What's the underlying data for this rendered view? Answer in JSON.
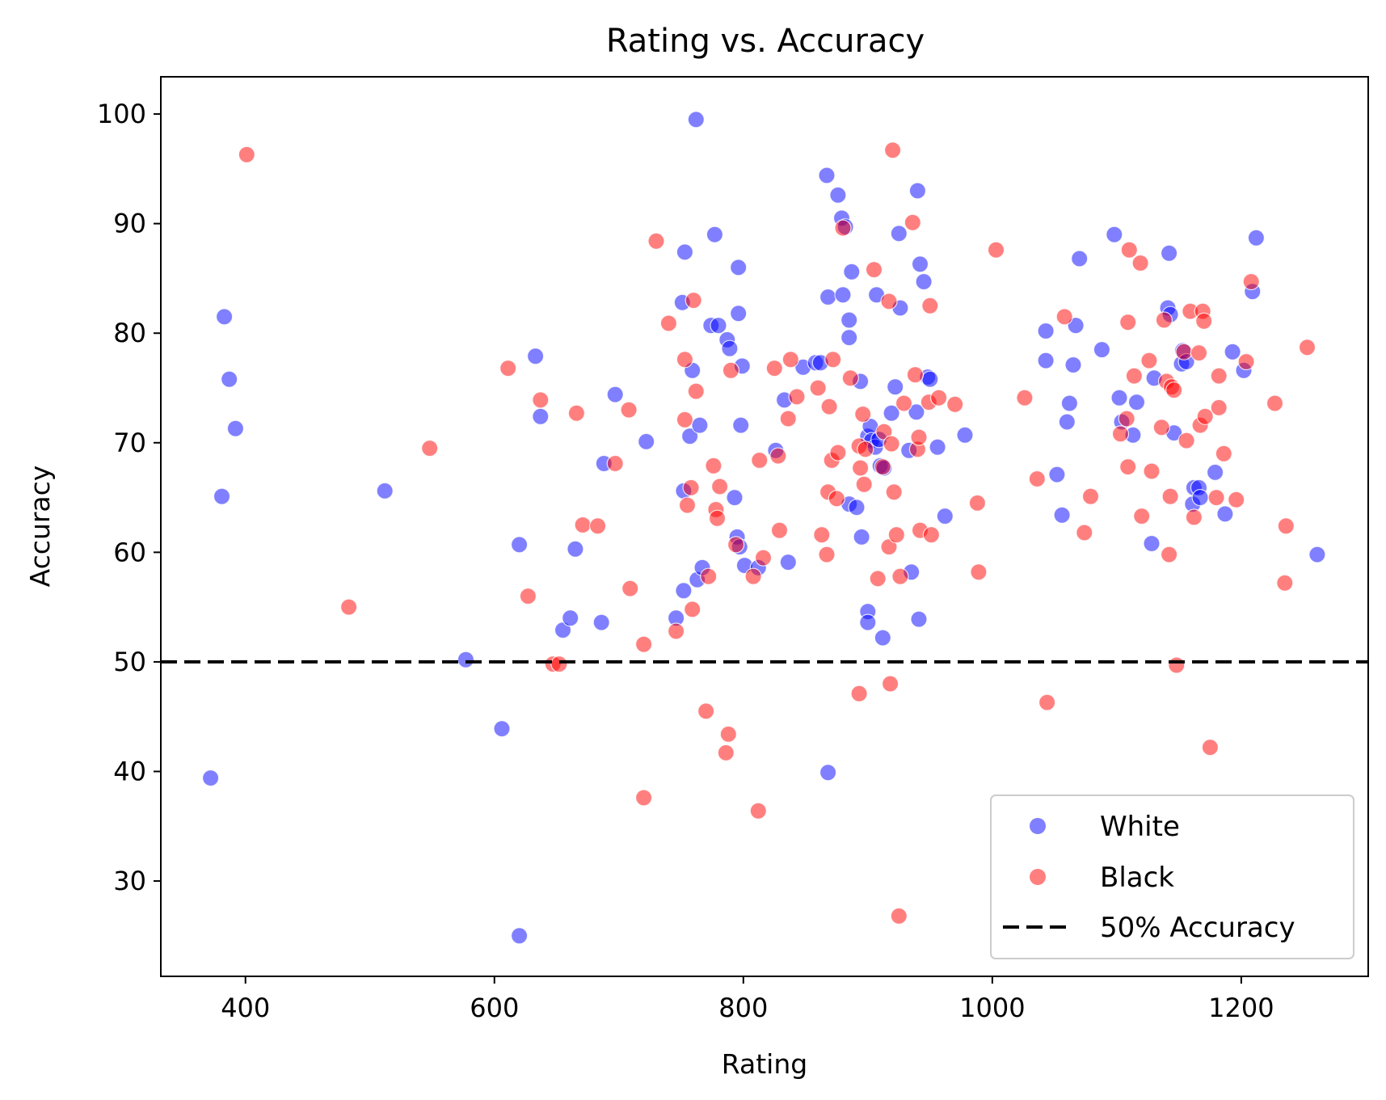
{
  "chart_data": {
    "type": "scatter",
    "title": "Rating vs. Accuracy",
    "xlabel": "Rating",
    "ylabel": "Accuracy",
    "xlim": [
      332,
      1302
    ],
    "ylim": [
      21.3,
      103.4
    ],
    "xticks": [
      400,
      600,
      800,
      1000,
      1200
    ],
    "yticks": [
      30,
      40,
      50,
      60,
      70,
      80,
      90,
      100
    ],
    "grid": false,
    "legend_position": "lower-right",
    "reference_line": {
      "y": 50,
      "style": "dashed",
      "color": "#000000",
      "label": "50% Accuracy"
    },
    "series": [
      {
        "name": "White",
        "color": "#0000ff",
        "opacity": 0.5,
        "points": [
          [
            372,
            39.4
          ],
          [
            381,
            65.1
          ],
          [
            383,
            81.5
          ],
          [
            387,
            75.8
          ],
          [
            392,
            71.3
          ],
          [
            512,
            65.6
          ],
          [
            577,
            50.2
          ],
          [
            606,
            43.9
          ],
          [
            620,
            25.0
          ],
          [
            620,
            60.7
          ],
          [
            633,
            77.9
          ],
          [
            637,
            72.4
          ],
          [
            655,
            52.9
          ],
          [
            661,
            54.0
          ],
          [
            665,
            60.3
          ],
          [
            686,
            53.6
          ],
          [
            688,
            68.1
          ],
          [
            697,
            74.4
          ],
          [
            722,
            70.1
          ],
          [
            746,
            54.0
          ],
          [
            751,
            82.8
          ],
          [
            752,
            65.6
          ],
          [
            752,
            56.5
          ],
          [
            753,
            87.4
          ],
          [
            757,
            70.6
          ],
          [
            759,
            76.6
          ],
          [
            762,
            99.5
          ],
          [
            763,
            57.5
          ],
          [
            765,
            71.6
          ],
          [
            767,
            58.6
          ],
          [
            774,
            80.7
          ],
          [
            777,
            89.0
          ],
          [
            780,
            80.7
          ],
          [
            787,
            79.4
          ],
          [
            789,
            78.6
          ],
          [
            793,
            65.0
          ],
          [
            795,
            61.4
          ],
          [
            796,
            86.0
          ],
          [
            796,
            81.8
          ],
          [
            797,
            60.5
          ],
          [
            798,
            71.6
          ],
          [
            799,
            77.0
          ],
          [
            801,
            58.8
          ],
          [
            812,
            58.6
          ],
          [
            826,
            69.3
          ],
          [
            833,
            73.9
          ],
          [
            836,
            59.1
          ],
          [
            848,
            76.9
          ],
          [
            858,
            77.3
          ],
          [
            862,
            77.3
          ],
          [
            867,
            94.4
          ],
          [
            868,
            83.3
          ],
          [
            868,
            39.9
          ],
          [
            876,
            92.6
          ],
          [
            879,
            90.5
          ],
          [
            880,
            83.5
          ],
          [
            882,
            89.7
          ],
          [
            885,
            81.2
          ],
          [
            885,
            79.6
          ],
          [
            885,
            64.4
          ],
          [
            887,
            85.6
          ],
          [
            891,
            64.1
          ],
          [
            894,
            75.6
          ],
          [
            895,
            61.4
          ],
          [
            900,
            70.6
          ],
          [
            900,
            54.6
          ],
          [
            900,
            53.6
          ],
          [
            902,
            71.5
          ],
          [
            903,
            70.2
          ],
          [
            906,
            69.6
          ],
          [
            907,
            83.5
          ],
          [
            909,
            70.3
          ],
          [
            910,
            67.9
          ],
          [
            912,
            52.2
          ],
          [
            913,
            67.7
          ],
          [
            919,
            72.7
          ],
          [
            922,
            75.1
          ],
          [
            925,
            89.1
          ],
          [
            926,
            82.3
          ],
          [
            933,
            69.3
          ],
          [
            935,
            58.2
          ],
          [
            939,
            72.8
          ],
          [
            940,
            93.0
          ],
          [
            941,
            53.9
          ],
          [
            942,
            86.3
          ],
          [
            945,
            84.7
          ],
          [
            948,
            76.0
          ],
          [
            950,
            75.8
          ],
          [
            956,
            69.6
          ],
          [
            962,
            63.3
          ],
          [
            978,
            70.7
          ],
          [
            1043,
            80.2
          ],
          [
            1043,
            77.5
          ],
          [
            1052,
            67.1
          ],
          [
            1056,
            63.4
          ],
          [
            1060,
            71.9
          ],
          [
            1062,
            73.6
          ],
          [
            1065,
            77.1
          ],
          [
            1067,
            80.7
          ],
          [
            1070,
            86.8
          ],
          [
            1088,
            78.5
          ],
          [
            1098,
            89.0
          ],
          [
            1102,
            74.1
          ],
          [
            1104,
            71.9
          ],
          [
            1113,
            70.7
          ],
          [
            1116,
            73.7
          ],
          [
            1128,
            60.8
          ],
          [
            1130,
            75.9
          ],
          [
            1141,
            82.3
          ],
          [
            1142,
            87.3
          ],
          [
            1143,
            81.7
          ],
          [
            1146,
            70.9
          ],
          [
            1152,
            77.2
          ],
          [
            1153,
            78.4
          ],
          [
            1156,
            77.4
          ],
          [
            1161,
            64.4
          ],
          [
            1162,
            65.9
          ],
          [
            1166,
            65.9
          ],
          [
            1167,
            65.0
          ],
          [
            1179,
            67.3
          ],
          [
            1187,
            63.5
          ],
          [
            1193,
            78.3
          ],
          [
            1202,
            76.6
          ],
          [
            1209,
            83.8
          ],
          [
            1212,
            88.7
          ],
          [
            1261,
            59.8
          ]
        ]
      },
      {
        "name": "Black",
        "color": "#ff0000",
        "opacity": 0.5,
        "points": [
          [
            401,
            96.3
          ],
          [
            483,
            55.0
          ],
          [
            548,
            69.5
          ],
          [
            611,
            76.8
          ],
          [
            627,
            56.0
          ],
          [
            637,
            73.9
          ],
          [
            647,
            49.8
          ],
          [
            652,
            49.8
          ],
          [
            666,
            72.7
          ],
          [
            671,
            62.5
          ],
          [
            683,
            62.4
          ],
          [
            697,
            68.1
          ],
          [
            708,
            73.0
          ],
          [
            709,
            56.7
          ],
          [
            720,
            37.6
          ],
          [
            720,
            51.6
          ],
          [
            730,
            88.4
          ],
          [
            740,
            80.9
          ],
          [
            746,
            52.8
          ],
          [
            753,
            72.1
          ],
          [
            753,
            77.6
          ],
          [
            755,
            64.3
          ],
          [
            758,
            65.9
          ],
          [
            759,
            54.8
          ],
          [
            760,
            83.0
          ],
          [
            762,
            74.7
          ],
          [
            770,
            45.5
          ],
          [
            772,
            57.8
          ],
          [
            776,
            67.9
          ],
          [
            778,
            63.9
          ],
          [
            779,
            63.1
          ],
          [
            781,
            66.0
          ],
          [
            786,
            41.7
          ],
          [
            788,
            43.4
          ],
          [
            790,
            76.6
          ],
          [
            794,
            60.7
          ],
          [
            808,
            57.8
          ],
          [
            812,
            36.4
          ],
          [
            813,
            68.4
          ],
          [
            816,
            59.5
          ],
          [
            825,
            76.8
          ],
          [
            828,
            68.8
          ],
          [
            829,
            62.0
          ],
          [
            836,
            72.2
          ],
          [
            838,
            77.6
          ],
          [
            843,
            74.2
          ],
          [
            860,
            75.0
          ],
          [
            863,
            61.6
          ],
          [
            867,
            59.8
          ],
          [
            868,
            65.5
          ],
          [
            869,
            73.3
          ],
          [
            871,
            68.4
          ],
          [
            872,
            77.6
          ],
          [
            875,
            64.9
          ],
          [
            876,
            69.1
          ],
          [
            880,
            89.6
          ],
          [
            886,
            75.9
          ],
          [
            893,
            47.1
          ],
          [
            893,
            69.7
          ],
          [
            894,
            67.7
          ],
          [
            896,
            72.6
          ],
          [
            897,
            66.2
          ],
          [
            898,
            69.4
          ],
          [
            905,
            85.8
          ],
          [
            908,
            57.6
          ],
          [
            912,
            67.8
          ],
          [
            913,
            71.0
          ],
          [
            917,
            82.9
          ],
          [
            917,
            60.5
          ],
          [
            918,
            48.0
          ],
          [
            919,
            69.9
          ],
          [
            920,
            96.7
          ],
          [
            921,
            65.5
          ],
          [
            923,
            61.6
          ],
          [
            925,
            26.8
          ],
          [
            926,
            57.8
          ],
          [
            929,
            73.6
          ],
          [
            936,
            90.1
          ],
          [
            938,
            76.2
          ],
          [
            940,
            69.4
          ],
          [
            941,
            70.5
          ],
          [
            942,
            62.0
          ],
          [
            949,
            73.7
          ],
          [
            950,
            82.5
          ],
          [
            951,
            61.6
          ],
          [
            957,
            74.1
          ],
          [
            970,
            73.5
          ],
          [
            988,
            64.5
          ],
          [
            989,
            58.2
          ],
          [
            1003,
            87.6
          ],
          [
            1026,
            74.1
          ],
          [
            1036,
            66.7
          ],
          [
            1044,
            46.3
          ],
          [
            1058,
            81.5
          ],
          [
            1074,
            61.8
          ],
          [
            1079,
            65.1
          ],
          [
            1103,
            70.8
          ],
          [
            1108,
            72.2
          ],
          [
            1109,
            81.0
          ],
          [
            1109,
            67.8
          ],
          [
            1110,
            87.6
          ],
          [
            1114,
            76.1
          ],
          [
            1119,
            86.4
          ],
          [
            1120,
            63.3
          ],
          [
            1126,
            77.5
          ],
          [
            1128,
            67.4
          ],
          [
            1136,
            71.4
          ],
          [
            1138,
            81.2
          ],
          [
            1140,
            75.6
          ],
          [
            1142,
            59.8
          ],
          [
            1143,
            65.1
          ],
          [
            1144,
            75.1
          ],
          [
            1146,
            74.8
          ],
          [
            1148,
            49.7
          ],
          [
            1154,
            78.3
          ],
          [
            1156,
            70.2
          ],
          [
            1159,
            82.0
          ],
          [
            1162,
            63.2
          ],
          [
            1166,
            78.2
          ],
          [
            1167,
            71.6
          ],
          [
            1169,
            82.0
          ],
          [
            1170,
            81.1
          ],
          [
            1171,
            72.4
          ],
          [
            1175,
            42.2
          ],
          [
            1180,
            65.0
          ],
          [
            1182,
            76.1
          ],
          [
            1182,
            73.2
          ],
          [
            1186,
            69.0
          ],
          [
            1196,
            64.8
          ],
          [
            1204,
            77.4
          ],
          [
            1208,
            84.7
          ],
          [
            1227,
            73.6
          ],
          [
            1235,
            57.2
          ],
          [
            1236,
            62.4
          ],
          [
            1253,
            78.7
          ]
        ]
      }
    ]
  }
}
